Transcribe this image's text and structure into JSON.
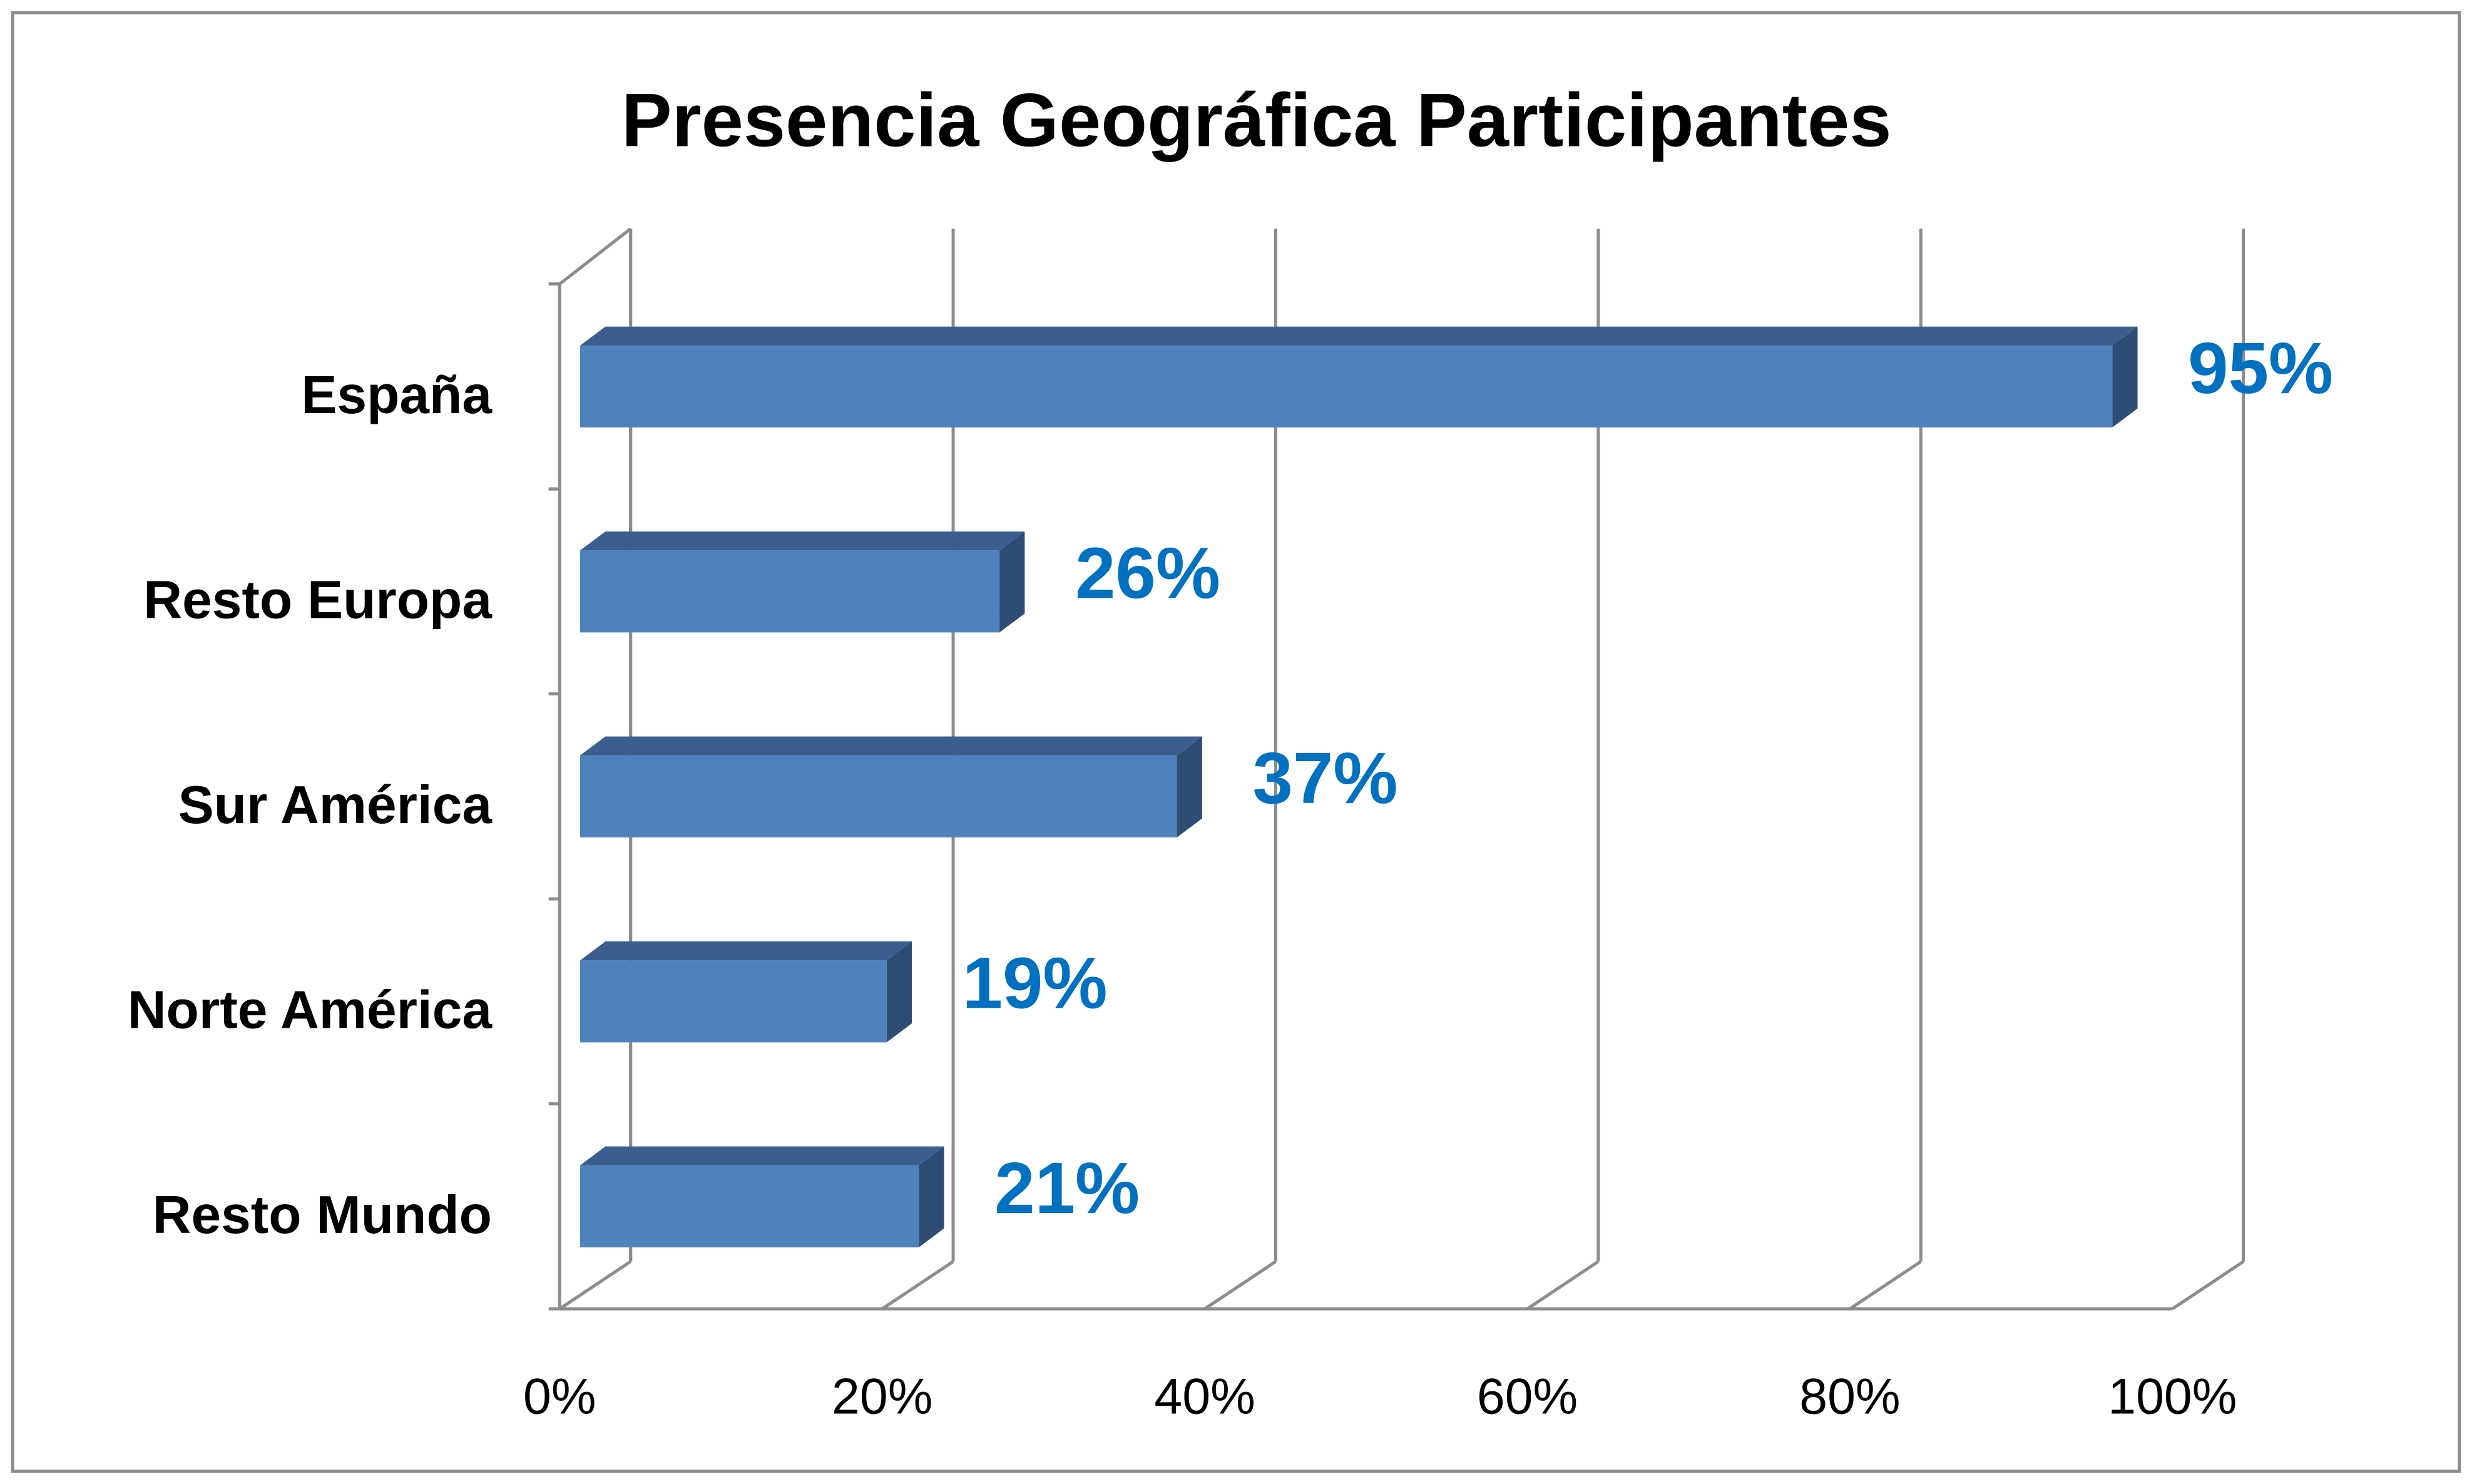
{
  "chart_data": {
    "type": "bar3d_horizontal",
    "title": "Presencia Geográfica Participantes",
    "categories": [
      "España",
      "Resto Europa",
      "Sur América",
      "Norte América",
      "Resto Mundo"
    ],
    "values": [
      95,
      26,
      37,
      19,
      21
    ],
    "value_labels": [
      "95%",
      "26%",
      "37%",
      "19%",
      "21%"
    ],
    "color": "#4f81bd",
    "label_color": "#0070c0",
    "xlim": [
      0,
      100
    ],
    "xticks": [
      {
        "value": 0,
        "label": "0%"
      },
      {
        "value": 20,
        "label": "20%"
      },
      {
        "value": 40,
        "label": "40%"
      },
      {
        "value": 60,
        "label": "60%"
      },
      {
        "value": 80,
        "label": "80%"
      },
      {
        "value": 100,
        "label": "100%"
      }
    ],
    "grid": true
  }
}
